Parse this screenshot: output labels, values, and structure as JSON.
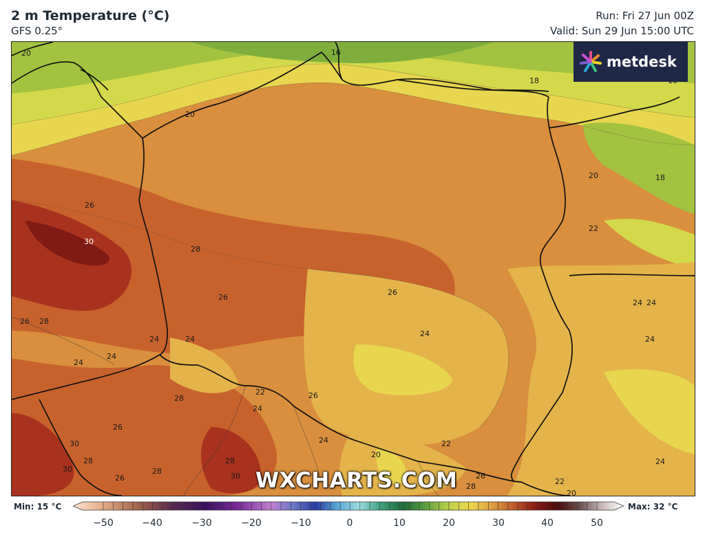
{
  "header": {
    "title": "2 m Temperature (°C)",
    "model": "GFS 0.25°",
    "run": "Run: Fri 27 Jun 00Z",
    "valid": "Valid: Sun 29 Jun 15:00 UTC"
  },
  "brand": {
    "logo_text": "metdesk",
    "watermark": "WXCHARTS.COM"
  },
  "colorbar": {
    "min_label": "Min: 15 °C",
    "max_label": "Max: 32 °C",
    "ticks": [
      "−50",
      "−40",
      "−30",
      "−20",
      "−10",
      "0",
      "10",
      "20",
      "30",
      "40",
      "50"
    ]
  },
  "map_labels": [
    {
      "id": "l16",
      "text": "16"
    },
    {
      "id": "l18a",
      "text": "18"
    },
    {
      "id": "l18b",
      "text": "18"
    },
    {
      "id": "l18c",
      "text": "18"
    },
    {
      "id": "l20a",
      "text": "20"
    },
    {
      "id": "l20b",
      "text": "20"
    },
    {
      "id": "l20c",
      "text": "20"
    },
    {
      "id": "l22a",
      "text": "22"
    },
    {
      "id": "l22b",
      "text": "22"
    },
    {
      "id": "l22c",
      "text": "22"
    },
    {
      "id": "l22d",
      "text": "22"
    },
    {
      "id": "l24a",
      "text": "24"
    },
    {
      "id": "l24b",
      "text": "24"
    },
    {
      "id": "l24c",
      "text": "24"
    },
    {
      "id": "l24d",
      "text": "24"
    },
    {
      "id": "l24e",
      "text": "24"
    },
    {
      "id": "l24f",
      "text": "24"
    },
    {
      "id": "l24g",
      "text": "24"
    },
    {
      "id": "l24h",
      "text": "24"
    },
    {
      "id": "l24i",
      "text": "24"
    },
    {
      "id": "l24j",
      "text": "24"
    },
    {
      "id": "l24k",
      "text": "24"
    },
    {
      "id": "l26a",
      "text": "26"
    },
    {
      "id": "l26b",
      "text": "26"
    },
    {
      "id": "l26c",
      "text": "26"
    },
    {
      "id": "l26d",
      "text": "26"
    },
    {
      "id": "l26e",
      "text": "26"
    },
    {
      "id": "l26f",
      "text": "26"
    },
    {
      "id": "l26g",
      "text": "26"
    },
    {
      "id": "l26h",
      "text": "26"
    },
    {
      "id": "l28a",
      "text": "28"
    },
    {
      "id": "l28b",
      "text": "28"
    },
    {
      "id": "l28c",
      "text": "28"
    },
    {
      "id": "l28d",
      "text": "28"
    },
    {
      "id": "l28e",
      "text": "28"
    },
    {
      "id": "l28f",
      "text": "28"
    },
    {
      "id": "l28g",
      "text": "28"
    },
    {
      "id": "l28h",
      "text": "28"
    },
    {
      "id": "l30a",
      "text": "30"
    },
    {
      "id": "l30b",
      "text": "30"
    },
    {
      "id": "l30c",
      "text": "30"
    },
    {
      "id": "l30d",
      "text": "30"
    },
    {
      "id": "l20d",
      "text": "20"
    },
    {
      "id": "l20e",
      "text": "20"
    }
  ],
  "colors": {
    "t16": "#7fae3c",
    "t18": "#a3c23f",
    "t20": "#d3d94a",
    "t22": "#e8d64e",
    "t24": "#e4b44a",
    "t26": "#d98f3d",
    "t28": "#c8622d",
    "t30": "#a9321e",
    "t32": "#7f1a14"
  }
}
